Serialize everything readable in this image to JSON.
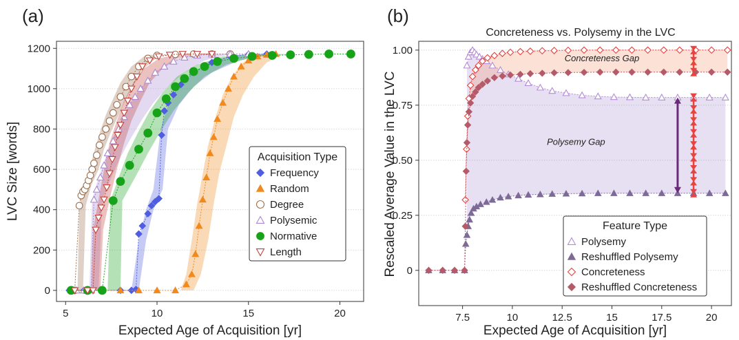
{
  "chart_data": [
    {
      "type": "scatter",
      "panel_label": "(a)",
      "title": "",
      "xlabel": "Expected Age of Acquisition [yr]",
      "ylabel": "LVC Size [words]",
      "xlim": [
        4.5,
        21.3
      ],
      "ylim": [
        -55,
        1235
      ],
      "xticks": [
        "5",
        "10",
        "15",
        "20"
      ],
      "xtick_values": [
        5,
        10,
        15,
        20
      ],
      "yticks": [
        "0",
        "200",
        "400",
        "600",
        "800",
        "1000",
        "1200"
      ],
      "ytick_values": [
        0,
        200,
        400,
        600,
        800,
        1000,
        1200
      ],
      "grid": "horizontal",
      "legend": {
        "title": "Acquisition Type",
        "position": "center-right"
      },
      "series": [
        {
          "name": "Frequency",
          "marker": "diamond-filled",
          "color": "#4f5de0",
          "x": [
            5.2,
            6.0,
            7.0,
            8.0,
            8.6,
            8.85,
            9.0,
            9.2,
            9.5,
            9.7,
            9.9,
            10.1,
            10.25,
            10.4,
            10.6,
            10.9,
            11.3,
            12.0,
            13.0,
            14.0,
            15.0,
            16.0
          ],
          "y": [
            0,
            0,
            0,
            0,
            0,
            5,
            280,
            320,
            380,
            420,
            440,
            455,
            770,
            890,
            930,
            970,
            1020,
            1080,
            1130,
            1160,
            1170,
            1172
          ]
        },
        {
          "name": "Random",
          "marker": "triangle-up-filled",
          "color": "#f08a1f",
          "x": [
            5.3,
            6.0,
            7.0,
            8.0,
            9.0,
            10.0,
            11.0,
            11.6,
            11.9,
            12.1,
            12.3,
            12.5,
            12.7,
            12.9,
            13.1,
            13.3,
            13.6,
            13.9,
            14.2,
            14.6,
            15.0,
            15.5,
            16.0,
            16.5
          ],
          "y": [
            0,
            0,
            0,
            0,
            0,
            0,
            0,
            30,
            80,
            180,
            320,
            450,
            560,
            680,
            760,
            850,
            930,
            1000,
            1060,
            1110,
            1140,
            1160,
            1168,
            1172
          ]
        },
        {
          "name": "Degree",
          "marker": "circle-open",
          "color": "#9a7050",
          "x": [
            5.3,
            5.5,
            5.75,
            5.85,
            5.95,
            6.05,
            6.15,
            6.25,
            6.35,
            6.45,
            6.55,
            6.7,
            6.85,
            7.0,
            7.2,
            7.4,
            7.6,
            7.8,
            8.0,
            8.3,
            8.6,
            9.0,
            9.5,
            10.0,
            11.0,
            12.0,
            13.0,
            14.0
          ],
          "y": [
            0,
            0,
            420,
            470,
            490,
            500,
            520,
            545,
            570,
            600,
            630,
            670,
            720,
            760,
            800,
            840,
            880,
            920,
            960,
            1010,
            1060,
            1110,
            1150,
            1165,
            1170,
            1172,
            1172,
            1172
          ]
        },
        {
          "name": "Polysemic",
          "marker": "triangle-up-open",
          "color": "#a988cf",
          "x": [
            5.6,
            6.0,
            6.4,
            6.55,
            6.7,
            6.9,
            7.1,
            7.3,
            7.6,
            7.9,
            8.2,
            8.5,
            8.8,
            9.1,
            9.5,
            9.9,
            10.4,
            10.9,
            11.5,
            12.2,
            13.0,
            14.0,
            15.0
          ],
          "y": [
            0,
            0,
            0,
            450,
            500,
            560,
            620,
            680,
            740,
            800,
            860,
            920,
            960,
            1000,
            1040,
            1080,
            1110,
            1135,
            1155,
            1165,
            1170,
            1172,
            1172
          ]
        },
        {
          "name": "Normative",
          "marker": "circle-filled",
          "color": "#17a319",
          "x": [
            5.3,
            6.2,
            7.0,
            7.6,
            8.0,
            8.5,
            9.0,
            9.5,
            10.0,
            10.5,
            11.0,
            11.5,
            12.0,
            12.6,
            13.3,
            14.2,
            15.2,
            16.3,
            17.3,
            18.3,
            19.4,
            20.6
          ],
          "y": [
            0,
            0,
            0,
            445,
            540,
            620,
            700,
            780,
            880,
            950,
            1010,
            1050,
            1085,
            1110,
            1135,
            1150,
            1160,
            1165,
            1168,
            1170,
            1172,
            1172
          ]
        },
        {
          "name": "Length",
          "marker": "triangle-down-open",
          "color": "#c2413a",
          "x": [
            5.5,
            6.2,
            6.5,
            6.65,
            6.8,
            6.95,
            7.1,
            7.25,
            7.4,
            7.55,
            7.7,
            7.85,
            8.0,
            8.2,
            8.4,
            8.6,
            8.9,
            9.2,
            9.6,
            10.1,
            10.7,
            11.4,
            12.2,
            13.0
          ],
          "y": [
            0,
            0,
            0,
            300,
            360,
            410,
            450,
            510,
            580,
            650,
            710,
            770,
            820,
            880,
            940,
            1000,
            1060,
            1110,
            1140,
            1160,
            1168,
            1172,
            1172,
            1172
          ]
        }
      ],
      "bands": [
        {
          "series": "Frequency",
          "x_lo": [
            8.6,
            9.0,
            9.4,
            9.8,
            10.2,
            10.6,
            11.2,
            12.0,
            13.0,
            14.5,
            16.0
          ],
          "x_hi": [
            9.0,
            9.4,
            9.8,
            10.3,
            10.6,
            11.2,
            12.0,
            13.0,
            14.5,
            16.0,
            16.5
          ],
          "y": [
            0,
            250,
            400,
            500,
            800,
            920,
            1010,
            1080,
            1140,
            1168,
            1172
          ]
        },
        {
          "series": "Random",
          "x_lo": [
            11.3,
            11.6,
            11.9,
            12.2,
            12.5,
            12.8,
            13.2,
            13.6,
            14.1,
            14.7,
            15.5
          ],
          "x_hi": [
            12.0,
            12.4,
            12.8,
            13.1,
            13.4,
            13.8,
            14.2,
            14.7,
            15.3,
            16.0,
            16.8
          ],
          "y": [
            0,
            80,
            250,
            430,
            580,
            720,
            860,
            970,
            1060,
            1130,
            1168
          ]
        },
        {
          "series": "Degree",
          "x_lo": [
            5.65,
            5.75,
            6.0,
            6.3,
            6.6,
            6.9,
            7.2,
            7.6,
            8.0,
            8.6,
            9.4
          ],
          "x_hi": [
            5.95,
            6.1,
            6.4,
            6.8,
            7.1,
            7.5,
            7.9,
            8.3,
            8.8,
            9.4,
            10.2
          ],
          "y": [
            0,
            420,
            520,
            600,
            700,
            790,
            870,
            950,
            1030,
            1110,
            1168
          ]
        },
        {
          "series": "Polysemic",
          "x_lo": [
            6.3,
            6.45,
            6.8,
            7.2,
            7.6,
            8.1,
            8.6,
            9.2,
            9.9,
            10.8,
            12.0
          ],
          "x_hi": [
            6.8,
            7.0,
            7.5,
            8.0,
            8.6,
            9.2,
            9.8,
            10.6,
            11.5,
            12.6,
            14.0
          ],
          "y": [
            0,
            450,
            560,
            660,
            760,
            850,
            930,
            1010,
            1080,
            1140,
            1170
          ]
        },
        {
          "series": "Normative",
          "x_lo": [
            7.3,
            7.45,
            7.9,
            8.4,
            9.0,
            9.6,
            10.3,
            11.1,
            12.2,
            13.6,
            15.5
          ],
          "x_hi": [
            8.0,
            8.1,
            8.8,
            9.5,
            10.2,
            10.9,
            11.7,
            12.6,
            13.8,
            15.4,
            17.5
          ],
          "y": [
            0,
            445,
            560,
            680,
            790,
            890,
            980,
            1060,
            1120,
            1160,
            1172
          ]
        },
        {
          "series": "Length",
          "x_lo": [
            6.4,
            6.5,
            6.8,
            7.1,
            7.4,
            7.8,
            8.2,
            8.7,
            9.3,
            10.1,
            11.2
          ],
          "x_hi": [
            6.9,
            7.05,
            7.4,
            7.8,
            8.2,
            8.6,
            9.1,
            9.6,
            10.3,
            11.1,
            12.4
          ],
          "y": [
            0,
            300,
            450,
            600,
            730,
            840,
            940,
            1030,
            1100,
            1150,
            1172
          ]
        }
      ]
    },
    {
      "type": "scatter",
      "panel_label": "(b)",
      "title": "Concreteness vs. Polysemy in the LVC",
      "xlabel": "Expected Age of Acquisition [yr]",
      "ylabel": "Rescaled Average Value in the LVC",
      "xlim": [
        5.3,
        21.0
      ],
      "ylim": [
        -0.16,
        1.04
      ],
      "xticks": [
        "7.5",
        "10",
        "12.5",
        "15",
        "17.5",
        "20"
      ],
      "xtick_values": [
        7.5,
        10,
        12.5,
        15,
        17.5,
        20
      ],
      "yticks": [
        "0",
        "0.25",
        "0.50",
        "0.75",
        "1.00"
      ],
      "ytick_values": [
        0,
        0.25,
        0.5,
        0.75,
        1.0
      ],
      "grid": "horizontal",
      "legend": {
        "title": "Feature Type",
        "position": "bottom-center"
      },
      "series": [
        {
          "name": "Polysemy",
          "marker": "triangle-up-open",
          "color": "#b48bd6",
          "x": [
            7.72,
            7.8,
            7.9,
            8.0,
            8.1,
            8.2,
            8.35,
            8.5,
            8.7,
            9.0,
            9.4,
            9.8,
            10.3,
            10.8,
            11.4,
            12.0,
            12.7,
            13.5,
            14.3,
            15.1,
            15.9,
            16.7,
            17.5,
            18.3,
            19.1,
            19.9,
            20.7
          ],
          "y": [
            0.93,
            0.97,
            0.99,
            1.0,
            0.99,
            0.98,
            0.97,
            0.96,
            0.95,
            0.93,
            0.91,
            0.89,
            0.87,
            0.85,
            0.83,
            0.815,
            0.805,
            0.795,
            0.79,
            0.787,
            0.786,
            0.785,
            0.785,
            0.785,
            0.785,
            0.785,
            0.785
          ]
        },
        {
          "name": "Reshuffled Polysemy",
          "marker": "triangle-up-filled",
          "color": "#7e6a97",
          "x": [
            5.8,
            6.5,
            7.1,
            7.6,
            7.66,
            7.72,
            7.78,
            7.85,
            7.93,
            8.05,
            8.2,
            8.4,
            8.7,
            9.0,
            9.4,
            9.8,
            10.3,
            10.8,
            11.4,
            12.0,
            12.7,
            13.5,
            14.3,
            15.1,
            15.9,
            16.7,
            17.5,
            18.3,
            19.1,
            19.9,
            20.7
          ],
          "y": [
            0,
            0,
            0,
            0,
            0.12,
            0.16,
            0.2,
            0.23,
            0.26,
            0.28,
            0.29,
            0.3,
            0.31,
            0.32,
            0.33,
            0.335,
            0.34,
            0.343,
            0.345,
            0.347,
            0.348,
            0.349,
            0.35,
            0.35,
            0.35,
            0.35,
            0.35,
            0.35,
            0.35,
            0.35,
            0.35
          ]
        },
        {
          "name": "Concreteness",
          "marker": "diamond-open",
          "color": "#e8433e",
          "x": [
            7.64,
            7.7,
            7.76,
            7.82,
            7.9,
            8.0,
            8.15,
            8.3,
            8.5,
            8.75,
            9.1,
            9.5,
            9.9,
            10.4,
            10.9,
            11.5,
            12.1,
            12.8,
            13.6,
            14.4,
            15.2,
            16.0,
            16.8,
            17.6,
            18.4,
            19.2,
            20.0,
            20.8
          ],
          "y": [
            0.32,
            0.55,
            0.7,
            0.78,
            0.84,
            0.88,
            0.91,
            0.93,
            0.95,
            0.965,
            0.975,
            0.985,
            0.99,
            0.993,
            0.995,
            0.997,
            0.998,
            0.999,
            1.0,
            1.0,
            1.0,
            1.0,
            1.0,
            1.0,
            1.0,
            1.0,
            1.0,
            1.0
          ]
        },
        {
          "name": "Reshuffled Concreteness",
          "marker": "diamond-filled",
          "color": "#b55a68",
          "x": [
            5.8,
            6.5,
            7.1,
            7.6,
            7.64,
            7.68,
            7.72,
            7.76,
            7.82,
            7.9,
            8.0,
            8.15,
            8.3,
            8.5,
            8.75,
            9.1,
            9.5,
            9.9,
            10.4,
            10.9,
            11.5,
            12.1,
            12.8,
            13.6,
            14.4,
            15.2,
            16.0,
            16.8,
            17.6,
            18.4,
            19.2,
            20.0,
            20.8
          ],
          "y": [
            0,
            0,
            0,
            0,
            0.2,
            0.45,
            0.58,
            0.66,
            0.72,
            0.76,
            0.79,
            0.81,
            0.83,
            0.845,
            0.86,
            0.875,
            0.882,
            0.887,
            0.89,
            0.893,
            0.895,
            0.897,
            0.898,
            0.899,
            0.9,
            0.9,
            0.9,
            0.9,
            0.9,
            0.9,
            0.9,
            0.9,
            0.9
          ]
        }
      ],
      "annotations": [
        {
          "text": "Concreteness Gap",
          "x": 14.5,
          "y": 0.95,
          "style": "italic"
        },
        {
          "text": "Polysemy Gap",
          "x": 13.2,
          "y": 0.57,
          "style": "italic"
        }
      ],
      "gap_arrows": [
        {
          "label": "Polysemy Gap",
          "x": 18.3,
          "y_from": 0.785,
          "y_to": 0.35,
          "color": "#6a2a7a"
        },
        {
          "label": "Concreteness Gap",
          "x": 19.1,
          "y_from": 1.0,
          "y_to": 0.9,
          "color": "#e8433e"
        },
        {
          "label": "Polysemy Gap",
          "x": 19.1,
          "y_from": 0.785,
          "y_to": 0.35,
          "color": "#e8433e"
        }
      ]
    }
  ]
}
